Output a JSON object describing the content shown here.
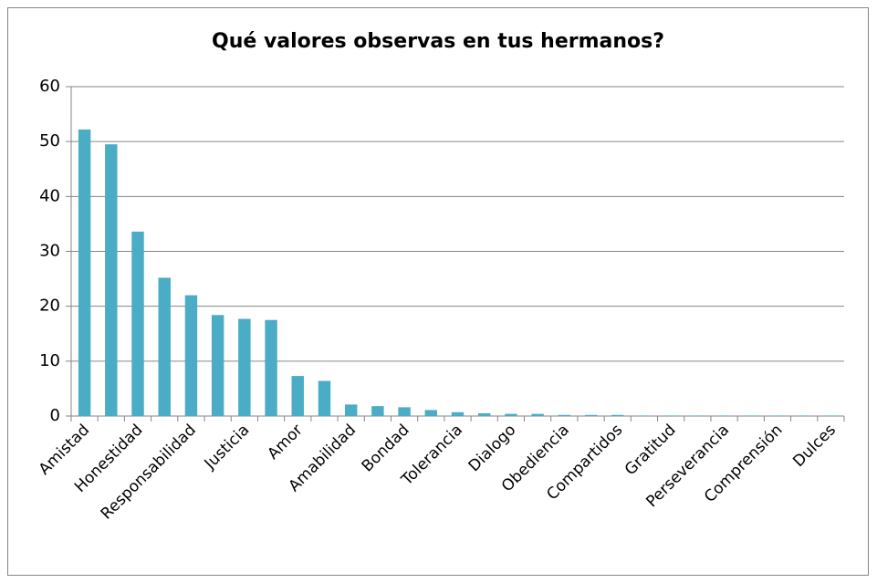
{
  "chart_data": {
    "type": "bar",
    "title": "Qué valores observas en tus hermanos?",
    "categories": [
      "Amistad",
      null,
      "Honestidad",
      null,
      "Responsabilidad",
      null,
      "Justicia",
      null,
      "Amor",
      null,
      "Amabilidad",
      null,
      "Bondad",
      null,
      "Tolerancia",
      null,
      "Dialogo",
      null,
      "Obediencia",
      null,
      "Compartidos",
      null,
      "Gratitud",
      null,
      "Perseverancia",
      null,
      "Comprensión",
      null,
      "Dulces"
    ],
    "values": [
      52.2,
      49.5,
      33.6,
      25.2,
      22,
      18.4,
      17.7,
      17.5,
      7.3,
      6.4,
      2.1,
      1.8,
      1.6,
      1.1,
      0.7,
      0.5,
      0.4,
      0.4,
      0.2,
      0.2,
      0.2,
      0.1,
      0.1,
      0.1,
      0.1,
      0.1,
      0.1,
      0.1,
      0.1
    ],
    "color": "#4bacc6",
    "ylim": [
      0,
      60
    ],
    "yticks": [
      0,
      10,
      20,
      30,
      40,
      50,
      60
    ],
    "grid": true
  }
}
